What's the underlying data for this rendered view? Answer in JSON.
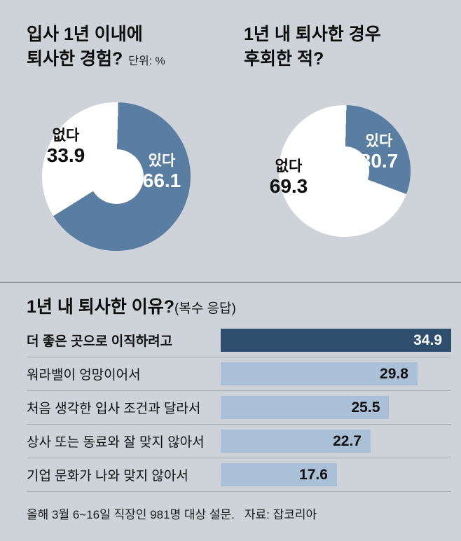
{
  "colors": {
    "background": "#cdd3d9",
    "pie_blue": "#5a7da2",
    "bar_dark": "#2d4f6d",
    "bar_light": "#aac0d7"
  },
  "pies": [
    {
      "title_line1": "입사 1년 이내에",
      "title_line2": "퇴사한 경험?",
      "unit": "단위: %",
      "yes_label": "있다",
      "yes_value": "66.1",
      "yes_share": 66.1,
      "no_label": "없다",
      "no_value": "33.9"
    },
    {
      "title_line1": "1년 내 퇴사한 경우",
      "title_line2": "후회한 적?",
      "yes_label": "있다",
      "yes_value": "30.7",
      "yes_share": 30.7,
      "no_label": "없다",
      "no_value": "69.3"
    }
  ],
  "bar_chart": {
    "title": "1년 내 퇴사한 이유?",
    "subtitle": "(복수 응답)",
    "max_value": 34.9,
    "rows": [
      {
        "label": "더 좋은 곳으로 이직하려고",
        "value": 34.9,
        "highlight": true
      },
      {
        "label": "워라밸이 엉망이어서",
        "value": 29.8,
        "highlight": false
      },
      {
        "label": "처음 생각한 입사 조건과 달라서",
        "value": 25.5,
        "highlight": false
      },
      {
        "label": "상사 또는 동료와 잘 맞지 않아서",
        "value": 22.7,
        "highlight": false
      },
      {
        "label": "기업 문화가 나와 맞지 않아서",
        "value": 17.6,
        "highlight": false
      }
    ]
  },
  "footer": {
    "survey": "올해 3월 6~16일 직장인 981명 대상 설문.",
    "source": "자료: 잡코리아"
  },
  "chart_data": [
    {
      "type": "pie",
      "title": "입사 1년 이내에 퇴사한 경험?",
      "unit": "%",
      "categories": [
        "있다",
        "없다"
      ],
      "values": [
        66.1,
        33.9
      ],
      "notes": "donut chart; 있다 slice blue starting at 12 o'clock clockwise"
    },
    {
      "type": "pie",
      "title": "1년 내 퇴사한 경우 후회한 적?",
      "unit": "%",
      "categories": [
        "있다",
        "없다"
      ],
      "values": [
        30.7,
        69.3
      ],
      "notes": "donut chart; 있다 slice blue starting at 12 o'clock clockwise"
    },
    {
      "type": "bar",
      "title": "1년 내 퇴사한 이유?(복수 응답)",
      "categories": [
        "더 좋은 곳으로 이직하려고",
        "워라밸이 엉망이어서",
        "처음 생각한 입사 조건과 달라서",
        "상사 또는 동료와 잘 맞지 않아서",
        "기업 문화가 나와 맞지 않아서"
      ],
      "values": [
        34.9,
        29.8,
        25.5,
        22.7,
        17.6
      ],
      "xlabel": "",
      "ylabel": "",
      "xlim": [
        0,
        34.9
      ],
      "orientation": "horizontal",
      "footnote": "올해 3월 6~16일 직장인 981명 대상 설문. 자료: 잡코리아"
    }
  ]
}
